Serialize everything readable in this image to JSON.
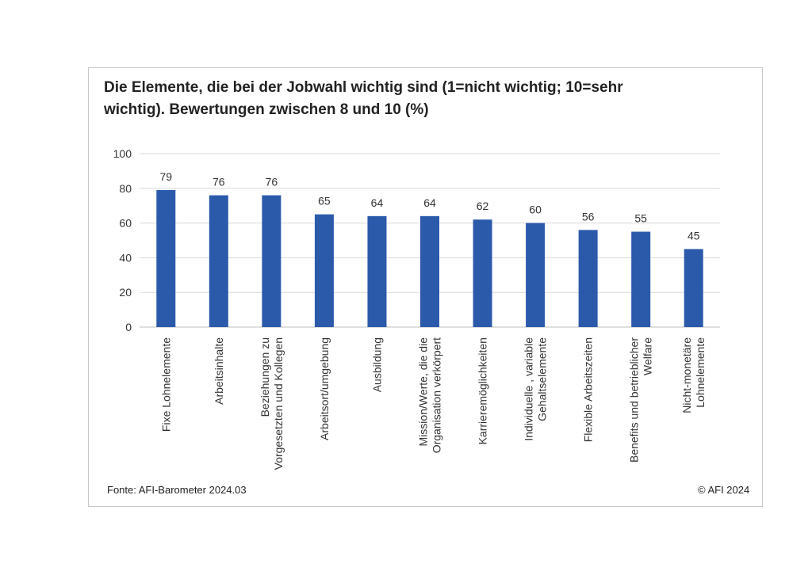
{
  "chart_data": {
    "type": "bar",
    "title": "Die Elemente, die bei der Jobwahl wichtig sind (1=nicht wichtig; 10=sehr wichtig). Bewertungen zwischen 8 und 10 (%)",
    "title_lines": [
      "Die Elemente, die bei der Jobwahl wichtig sind (1=nicht wichtig; 10=sehr",
      "wichtig). Bewertungen zwischen 8 und 10 (%)"
    ],
    "categories": [
      "Fixe Lohnelemente",
      "Arbeitsinhalte",
      "Beziehungen zu Vorgesetzten und Kollegen",
      "Arbeitsort/umgebung",
      "Ausbildung",
      "Mission/Werte, die die Organisation verkörpert",
      "Karrieremöglichkeiten",
      "Individuelle , variable Gehaltselemente",
      "Flexible Arbeitszeiten",
      "Benefits und betrieblicher Welfare",
      "Nicht-monetäre Lohnelemente"
    ],
    "category_lines": [
      [
        "Fixe Lohnelemente"
      ],
      [
        "Arbeitsinhalte"
      ],
      [
        "Beziehungen zu",
        "Vorgesetzten und Kollegen"
      ],
      [
        "Arbeitsort/umgebung"
      ],
      [
        "Ausbildung"
      ],
      [
        "Mission/Werte, die die",
        "Organisation verkörpert"
      ],
      [
        "Karrieremöglichkeiten"
      ],
      [
        "Individuelle , variable",
        "Gehaltselemente"
      ],
      [
        "Flexible Arbeitszeiten"
      ],
      [
        "Benefits und betrieblicher",
        "Welfare"
      ],
      [
        "Nicht-monetäre",
        "Lohnelemente"
      ]
    ],
    "values": [
      79,
      76,
      76,
      65,
      64,
      64,
      62,
      60,
      56,
      55,
      45
    ],
    "ylim": [
      0,
      100
    ],
    "yticks": [
      0,
      20,
      40,
      60,
      80,
      100
    ],
    "grid": true,
    "bar_color": "#2b5aab",
    "data_labels": true,
    "xlabel": "",
    "ylabel": ""
  },
  "footer": {
    "source": "Fonte: AFI-Barometer 2024.03",
    "copyright": "© AFI 2024"
  }
}
